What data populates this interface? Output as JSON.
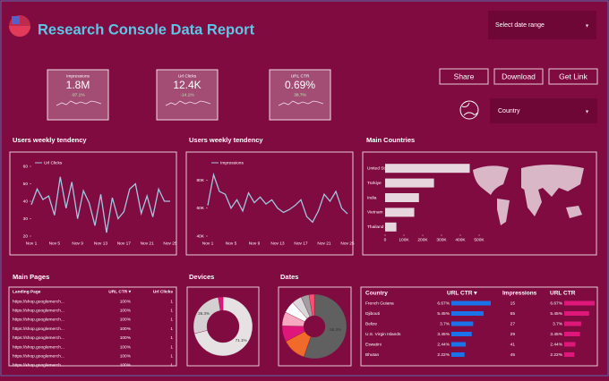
{
  "header": {
    "title": "Research Console Data Report",
    "date_selector": "Select date range"
  },
  "kpis": [
    {
      "label": "Impressions",
      "value": "1.8M",
      "delta": "-97.1%"
    },
    {
      "label": "Url Clicks",
      "value": "12.4K",
      "delta": "-14.1%"
    },
    {
      "label": "URL CTR",
      "value": "0.69%",
      "delta": "38.7%"
    }
  ],
  "buttons": [
    "Share",
    "Download",
    "Get Link"
  ],
  "country_filter": "Country",
  "clicks_chart": {
    "type": "line",
    "title": "Users weekly tendency",
    "categories": [
      "Nov 1",
      null,
      null,
      null,
      "Nov 5",
      null,
      null,
      null,
      "Nov 9",
      null,
      null,
      null,
      "Nov 13",
      null,
      null,
      null,
      "Nov 17",
      null,
      null,
      null,
      "Nov 21",
      null,
      null,
      null,
      "Nov 25"
    ],
    "series": [
      {
        "name": "Url Clicks",
        "color": "#9fc7e0",
        "values": [
          38,
          47,
          41,
          43,
          32,
          54,
          36,
          51,
          30,
          46,
          39,
          26,
          44,
          22,
          42,
          30,
          34,
          47,
          50,
          33,
          43,
          31,
          47,
          40,
          40
        ]
      }
    ],
    "ylim": [
      20,
      60
    ],
    "yticks": [
      20,
      30,
      40,
      50,
      60
    ]
  },
  "impressions_chart": {
    "type": "line",
    "title": "Users weekly tendency",
    "categories": [
      "Nov 1",
      null,
      null,
      null,
      "Nov 5",
      null,
      null,
      null,
      "Nov 9",
      null,
      null,
      null,
      "Nov 13",
      null,
      null,
      null,
      "Nov 17",
      null,
      null,
      null,
      "Nov 21",
      null,
      null,
      null,
      "Nov 25"
    ],
    "series": [
      {
        "name": "Impressions",
        "color": "#9fc7e0",
        "values": [
          62000,
          84000,
          72000,
          70000,
          60000,
          66000,
          58000,
          71000,
          64000,
          68000,
          63000,
          66000,
          60000,
          57000,
          59000,
          62000,
          66000,
          54000,
          50000,
          58000,
          70000,
          65000,
          72000,
          60000,
          56000
        ]
      }
    ],
    "ylim": [
      40000,
      90000
    ],
    "yticks": [
      {
        "value": 40000,
        "label": "40K"
      },
      {
        "value": 60000,
        "label": "60K"
      },
      {
        "value": 80000,
        "label": "80K"
      }
    ]
  },
  "countries_chart": {
    "type": "bar",
    "title": "Main Countries",
    "categories": [
      "United States",
      "Türkiye",
      "India",
      "Vietnam",
      "Thailand"
    ],
    "values": [
      450000,
      260000,
      180000,
      155000,
      60000
    ],
    "color": "#e8d6de",
    "xlim": [
      0,
      500000
    ],
    "xticks": [
      0,
      {
        "value": 100000,
        "label": "100K"
      },
      {
        "value": 200000,
        "label": "200K"
      },
      {
        "value": 300000,
        "label": "300K"
      },
      {
        "value": 400000,
        "label": "400K"
      },
      {
        "value": 500000,
        "label": "500K"
      }
    ]
  },
  "pages_table": {
    "title": "Main Pages",
    "columns": [
      "Landing Page",
      "URL CTR ▾",
      "Url Clicks"
    ],
    "rows": [
      [
        "https://shop.googlemerch...",
        "100%",
        "1"
      ],
      [
        "https://shop.googlemerch...",
        "100%",
        "1"
      ],
      [
        "https://shop.googlemerch...",
        "100%",
        "1"
      ],
      [
        "https://shop.googlemerch...",
        "100%",
        "1"
      ],
      [
        "https://shop.googlemerch...",
        "100%",
        "1"
      ],
      [
        "https://shop.googlemerch...",
        "100%",
        "1"
      ],
      [
        "https://shop.googlemerch...",
        "100%",
        "1"
      ],
      [
        "https://shop.googlemerch...",
        "100%",
        "1"
      ]
    ]
  },
  "devices_chart": {
    "type": "donut",
    "title": "Devices",
    "values": [
      71.1,
      26.3,
      2.6
    ],
    "value_labels": [
      "71.1%",
      "26.3%",
      null
    ],
    "colors": [
      "#e6e2e3",
      "#d4d0d2",
      "#e0177a"
    ]
  },
  "dates_chart": {
    "type": "donut",
    "title": "Dates",
    "values": [
      55.3,
      12,
      8,
      7,
      6,
      5,
      4,
      2.7
    ],
    "value_labels": [
      "55.3%",
      null,
      null,
      null,
      null,
      null,
      null,
      null
    ],
    "colors": [
      "#606060",
      "#f06a2a",
      "#e0177a",
      "#f7a8c0",
      "#ffffff",
      "#d9d9d9",
      "#a0a0a0",
      "#ff4f6f"
    ]
  },
  "country_table": {
    "columns": [
      "Country",
      "URL CTR ▾",
      "Impressions",
      "URL CTR"
    ],
    "rows": [
      {
        "country": "French Guiana",
        "ctr": 6.67,
        "ctr_label": "6.67%",
        "impressions": 15
      },
      {
        "country": "Djibouti",
        "ctr": 5.45,
        "ctr_label": "5.45%",
        "impressions": 55
      },
      {
        "country": "Belize",
        "ctr": 3.7,
        "ctr_label": "3.7%",
        "impressions": 27
      },
      {
        "country": "U.S. Virgin Islands",
        "ctr": 3.45,
        "ctr_label": "3.45%",
        "impressions": 29
      },
      {
        "country": "Eswatini",
        "ctr": 2.44,
        "ctr_label": "2.44%",
        "impressions": 41
      },
      {
        "country": "Bhutan",
        "ctr": 2.22,
        "ctr_label": "2.22%",
        "impressions": 45
      }
    ],
    "bar_colors": [
      "#1a73e8",
      "#e0177a"
    ]
  }
}
